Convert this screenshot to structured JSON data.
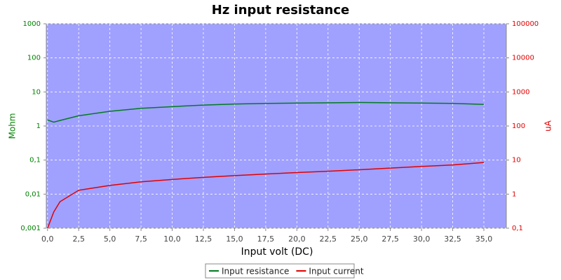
{
  "chart_data": {
    "type": "line",
    "title": "Hz input resistance",
    "x_label": "Input volt (DC)",
    "y_label": "Mohm",
    "y2_label": "uA",
    "x": [
      0,
      0.5,
      1,
      2.5,
      5,
      7.5,
      10,
      12.5,
      15,
      17.5,
      20,
      22.5,
      25,
      27.5,
      30,
      32.5,
      35
    ],
    "xlim": [
      -0.1,
      36.8
    ],
    "xticks": [
      {
        "value": 0,
        "label": "0,0"
      },
      {
        "value": 2.5,
        "label": "2,5"
      },
      {
        "value": 5,
        "label": "5,0"
      },
      {
        "value": 7.5,
        "label": "7,5"
      },
      {
        "value": 10,
        "label": "10,0"
      },
      {
        "value": 12.5,
        "label": "12,5"
      },
      {
        "value": 15,
        "label": "15,0"
      },
      {
        "value": 17.5,
        "label": "17,5"
      },
      {
        "value": 20,
        "label": "20,0"
      },
      {
        "value": 22.5,
        "label": "22,5"
      },
      {
        "value": 25,
        "label": "25,0"
      },
      {
        "value": 27.5,
        "label": "27,5"
      },
      {
        "value": 30,
        "label": "30,0"
      },
      {
        "value": 32.5,
        "label": "32,5"
      },
      {
        "value": 35,
        "label": "35,0"
      }
    ],
    "ylim": [
      0.001,
      1000
    ],
    "y_log": true,
    "yticks": [
      {
        "value": 0.001,
        "label": "0,001"
      },
      {
        "value": 0.01,
        "label": "0,01"
      },
      {
        "value": 0.1,
        "label": "0,1"
      },
      1,
      10,
      100,
      1000
    ],
    "y2lim": [
      0.1,
      100000
    ],
    "y2_log": true,
    "y2ticks": [
      {
        "value": 0.1,
        "label": "0,1"
      },
      1,
      10,
      100,
      1000,
      10000,
      100000
    ],
    "grid": true,
    "legend": "bottom",
    "background": "#a0a0ff",
    "y_color": "#008000",
    "y2_color": "#e00000",
    "series": [
      {
        "name": "Input resistance",
        "color": "#007a20",
        "values": [
          1.5,
          1.3,
          1.45,
          2.0,
          2.7,
          3.3,
          3.7,
          4.1,
          4.4,
          4.6,
          4.7,
          4.8,
          4.9,
          4.8,
          4.7,
          4.6,
          4.3
        ]
      },
      {
        "name": "Input current",
        "color": "#e00000",
        "axis": "y2",
        "values": [
          0.1,
          0.3,
          0.6,
          1.3,
          1.8,
          2.3,
          2.7,
          3.1,
          3.5,
          3.9,
          4.3,
          4.7,
          5.2,
          5.8,
          6.5,
          7.2,
          8.5
        ]
      }
    ]
  }
}
